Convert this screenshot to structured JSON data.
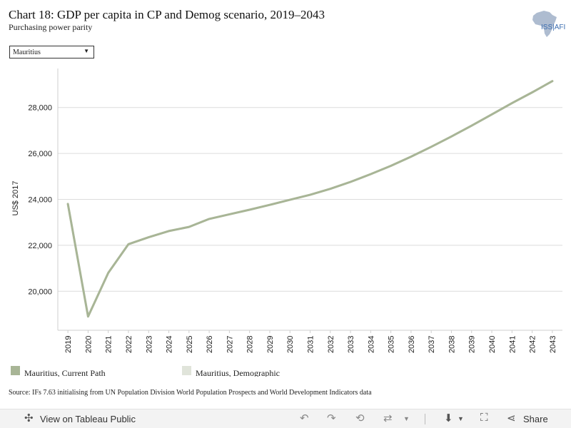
{
  "header": {
    "title": "Chart 18: GDP per capita in CP and Demog scenario, 2019–2043",
    "subtitle": "Purchasing power parity",
    "logo_text": "ISS|AFI"
  },
  "filter": {
    "selected": "Mauritius"
  },
  "chart_data": {
    "type": "line",
    "ylabel": "US$ 2017",
    "xlabel": "",
    "ylim": [
      18300,
      29700
    ],
    "yticks": [
      20000,
      22000,
      24000,
      26000,
      28000
    ],
    "grid": true,
    "x": [
      "2019",
      "2020",
      "2021",
      "2022",
      "2023",
      "2024",
      "2025",
      "2026",
      "2027",
      "2028",
      "2029",
      "2030",
      "2031",
      "2032",
      "2033",
      "2034",
      "2035",
      "2036",
      "2037",
      "2038",
      "2039",
      "2040",
      "2041",
      "2042",
      "2043"
    ],
    "series": [
      {
        "name": "Mauritius, Current Path",
        "color": "#a8b596",
        "values": [
          23800,
          18900,
          20800,
          22050,
          22350,
          22620,
          22800,
          23150,
          23350,
          23550,
          23760,
          23980,
          24200,
          24460,
          24760,
          25100,
          25460,
          25860,
          26290,
          26740,
          27210,
          27700,
          28190,
          28660,
          29150
        ]
      },
      {
        "name": "Mauritius, Demographic",
        "color": "#e0e4da",
        "values": [
          23800,
          18900,
          20800,
          22050,
          22350,
          22620,
          22800,
          23150,
          23350,
          23550,
          23760,
          23980,
          24200,
          24460,
          24760,
          25100,
          25460,
          25860,
          26290,
          26740,
          27210,
          27700,
          28190,
          28660,
          29150
        ]
      }
    ],
    "legend_position": "bottom"
  },
  "legend": [
    {
      "label": "Mauritius, Current Path",
      "color": "#a8b596"
    },
    {
      "label": "Mauritius, Demographic",
      "color": "#e0e4da"
    }
  ],
  "source": "Source: IFs 7.63 initialising from UN Population Division World Population Prospects and World Development Indicators data",
  "toolbar": {
    "view_label": "View on Tableau Public",
    "share_label": "Share"
  }
}
